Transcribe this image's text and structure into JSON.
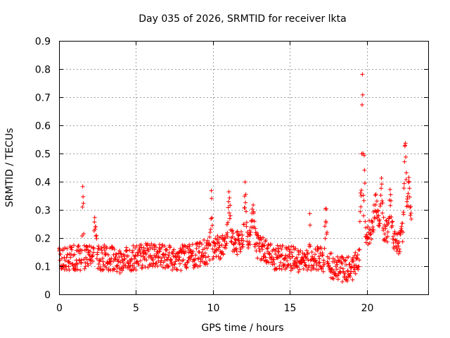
{
  "chart_data": {
    "type": "scatter",
    "title": "Day 035 of 2026, SRMTID for receiver lkta",
    "xlabel": "GPS time / hours",
    "ylabel": "SRMTID / TECUs",
    "xlim": [
      0,
      24
    ],
    "ylim": [
      0,
      0.9
    ],
    "x_ticks": [
      0,
      5,
      10,
      15,
      20
    ],
    "y_ticks": [
      0,
      0.1,
      0.2,
      0.3,
      0.4,
      0.5,
      0.6,
      0.7,
      0.8,
      0.9
    ],
    "x_tick_labels": [
      "0",
      "5",
      "10",
      "15",
      "20"
    ],
    "y_tick_labels": [
      "0",
      "0.1",
      "0.2",
      "0.3",
      "0.4",
      "0.5",
      "0.6",
      "0.7",
      "0.8",
      "0.9"
    ],
    "grid": true,
    "marker": "+",
    "color": "#ff0000",
    "sampling_interval_hours": 0.02,
    "sample_start_hours": 0,
    "sample_end_hours": 22.9,
    "baseline_profile": [
      [
        0,
        0.12
      ],
      [
        1,
        0.13
      ],
      [
        2,
        0.13
      ],
      [
        3,
        0.13
      ],
      [
        4,
        0.12
      ],
      [
        5,
        0.13
      ],
      [
        6,
        0.14
      ],
      [
        7,
        0.13
      ],
      [
        8,
        0.13
      ],
      [
        9,
        0.14
      ],
      [
        10,
        0.16
      ],
      [
        11,
        0.18
      ],
      [
        12,
        0.19
      ],
      [
        13,
        0.17
      ],
      [
        14,
        0.13
      ],
      [
        15,
        0.13
      ],
      [
        16,
        0.11
      ],
      [
        17,
        0.13
      ],
      [
        18,
        0.09
      ],
      [
        19,
        0.09
      ],
      [
        19.7,
        0.13
      ],
      [
        20,
        0.22
      ],
      [
        21,
        0.24
      ],
      [
        22,
        0.18
      ],
      [
        22.9,
        0.25
      ]
    ],
    "peaks": [
      {
        "center": 1.55,
        "width": 0.04,
        "height": 0.27
      },
      {
        "center": 2.35,
        "width": 0.08,
        "height": 0.13
      },
      {
        "center": 9.9,
        "width": 0.06,
        "height": 0.17
      },
      {
        "center": 11.05,
        "width": 0.1,
        "height": 0.15
      },
      {
        "center": 12.1,
        "width": 0.08,
        "height": 0.17
      },
      {
        "center": 12.6,
        "width": 0.12,
        "height": 0.1
      },
      {
        "center": 16.3,
        "width": 0.03,
        "height": 0.14
      },
      {
        "center": 17.35,
        "width": 0.08,
        "height": 0.17
      },
      {
        "center": 19.6,
        "width": 0.05,
        "height": 0.25
      },
      {
        "center": 19.72,
        "width": 0.05,
        "height": 0.65
      },
      {
        "center": 19.85,
        "width": 0.04,
        "height": 0.3
      },
      {
        "center": 20.6,
        "width": 0.15,
        "height": 0.1
      },
      {
        "center": 20.95,
        "width": 0.08,
        "height": 0.18
      },
      {
        "center": 21.55,
        "width": 0.1,
        "height": 0.13
      },
      {
        "center": 22.5,
        "width": 0.1,
        "height": 0.32
      },
      {
        "center": 22.75,
        "width": 0.08,
        "height": 0.2
      }
    ],
    "noise_amplitude": 0.045
  }
}
